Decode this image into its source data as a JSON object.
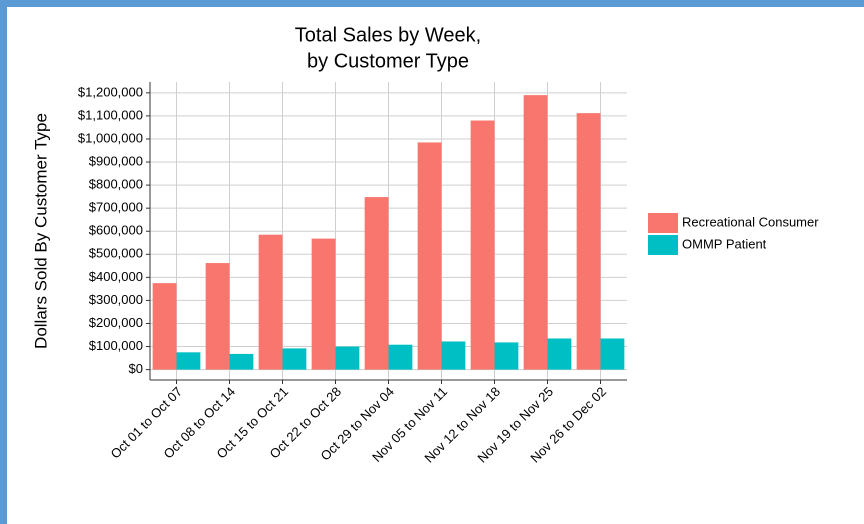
{
  "chart_data": {
    "type": "bar",
    "title": [
      "Total Sales by Week,",
      "by Customer Type"
    ],
    "y_label": "Dollars Sold By Customer Type",
    "categories": [
      "Oct 01 to Oct 07",
      "Oct 08 to Oct 14",
      "Oct 15 to Oct 21",
      "Oct 22 to Oct 28",
      "Oct 29 to Nov 04",
      "Nov 05 to Nov 11",
      "Nov 12 to Nov 18",
      "Nov 19 to Nov 25",
      "Nov 26 to Dec 02"
    ],
    "series": [
      {
        "name": "Recreational Consumer",
        "color": "#f8766d",
        "values": [
          375000,
          462000,
          585000,
          568000,
          748000,
          985000,
          1080000,
          1190000,
          1112000
        ]
      },
      {
        "name": "OMMP Patient",
        "color": "#00bfc4",
        "values": [
          75000,
          68000,
          92000,
          100000,
          108000,
          122000,
          118000,
          135000,
          135000
        ]
      }
    ],
    "ylim": [
      -45000,
      1247000
    ],
    "yticks": [
      {
        "value": 0,
        "label": "$0"
      },
      {
        "value": 100000,
        "label": "$100,000"
      },
      {
        "value": 200000,
        "label": "$200,000"
      },
      {
        "value": 300000,
        "label": "$300,000"
      },
      {
        "value": 400000,
        "label": "$400,000"
      },
      {
        "value": 500000,
        "label": "$500,000"
      },
      {
        "value": 600000,
        "label": "$600,000"
      },
      {
        "value": 700000,
        "label": "$700,000"
      },
      {
        "value": 800000,
        "label": "$800,000"
      },
      {
        "value": 900000,
        "label": "$900,000"
      },
      {
        "value": 1000000,
        "label": "$1,000,000"
      },
      {
        "value": 1100000,
        "label": "$1,100,000"
      },
      {
        "value": 1200000,
        "label": "$1,200,000"
      }
    ],
    "grid": true,
    "legend": "right"
  }
}
